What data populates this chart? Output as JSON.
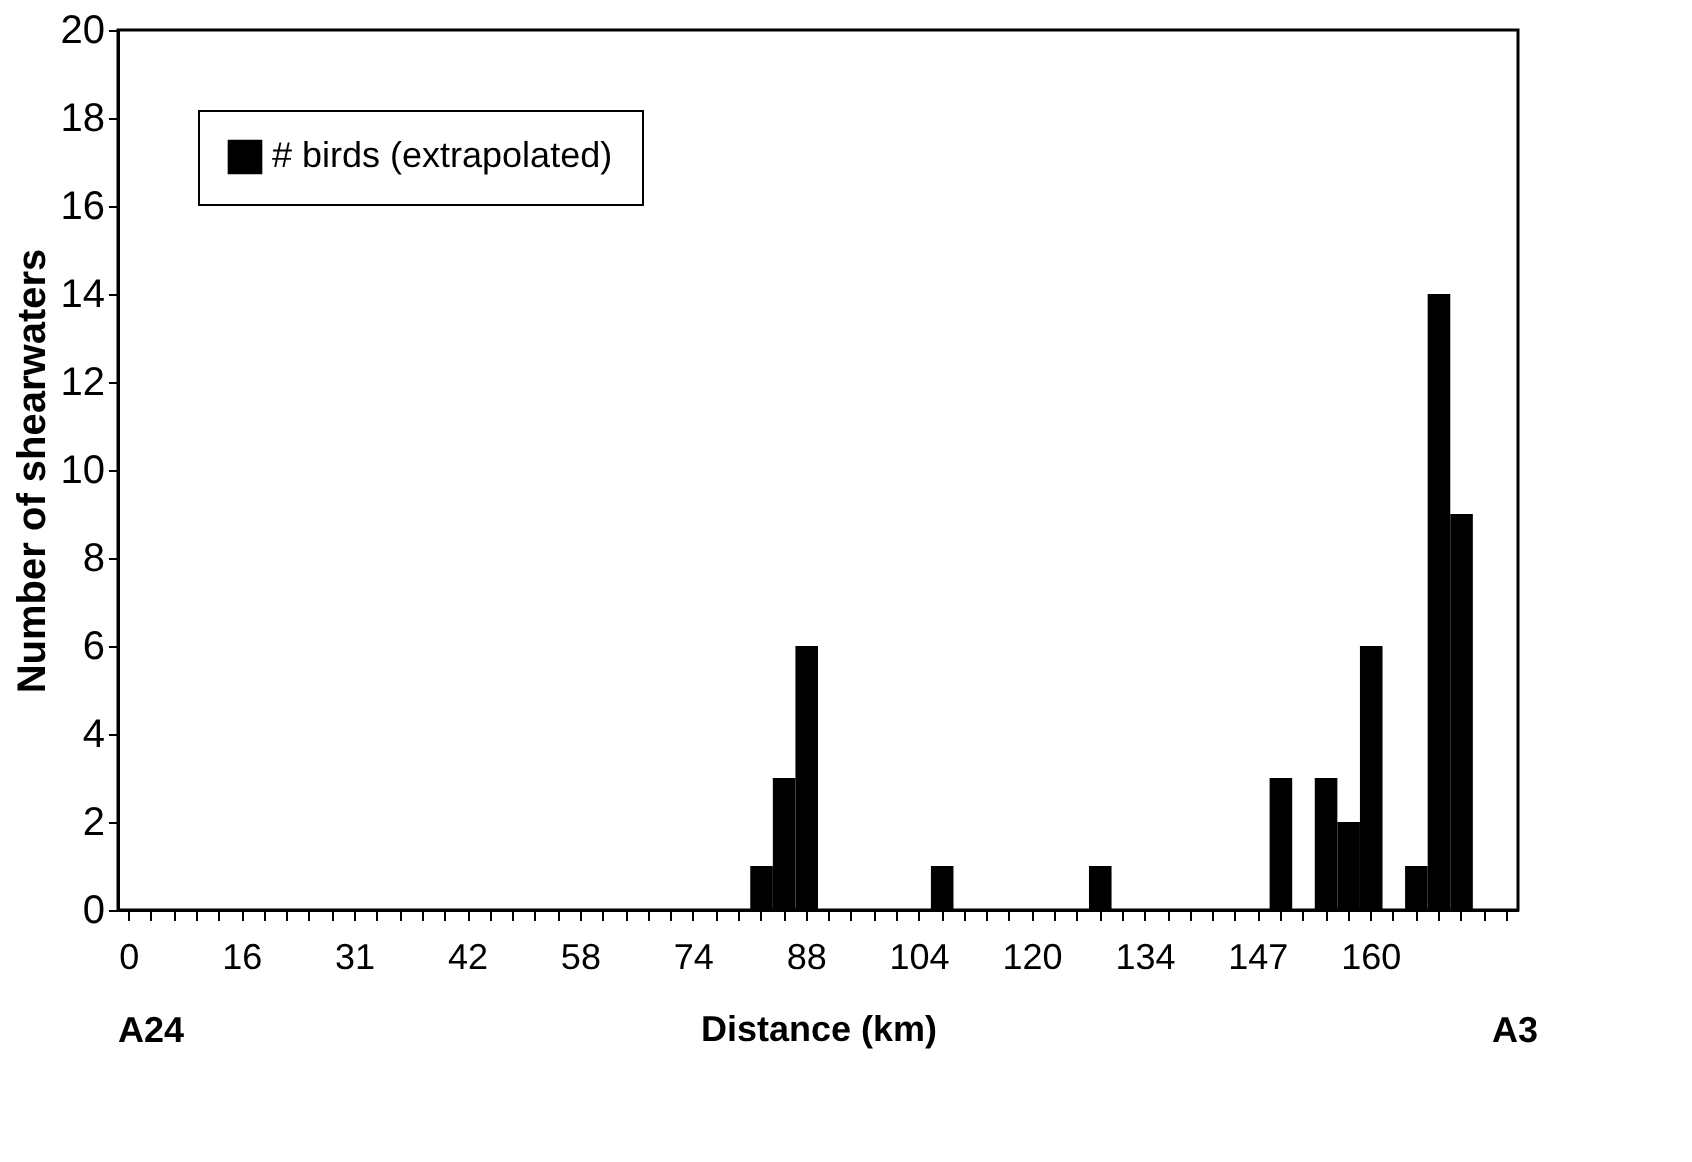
{
  "chart_data": {
    "type": "bar",
    "xlabel": "Distance (km)",
    "ylabel": "Number of shearwaters",
    "categories": [
      "0",
      null,
      null,
      null,
      null,
      "16",
      null,
      null,
      null,
      null,
      "31",
      null,
      null,
      null,
      null,
      "42",
      null,
      null,
      null,
      null,
      "58",
      null,
      null,
      null,
      null,
      "74",
      null,
      null,
      null,
      null,
      "88",
      null,
      null,
      null,
      null,
      "104",
      null,
      null,
      null,
      null,
      "120",
      null,
      null,
      null,
      null,
      "134",
      null,
      null,
      null,
      null,
      "147",
      null,
      null,
      null,
      null,
      "160",
      null,
      null,
      null,
      null,
      null,
      null
    ],
    "series": [
      {
        "name": "# birds (extrapolated)",
        "color": "#000000",
        "values": [
          0,
          0,
          0,
          0,
          0,
          0,
          0,
          0,
          0,
          0,
          0,
          0,
          0,
          0,
          0,
          0,
          0,
          0,
          0,
          0,
          0,
          0,
          0,
          0,
          0,
          0,
          0,
          0,
          1,
          3,
          6,
          0,
          0,
          0,
          0,
          0,
          1,
          0,
          0,
          0,
          0,
          0,
          0,
          1,
          0,
          0,
          0,
          0,
          0,
          0,
          0,
          3,
          0,
          3,
          2,
          6,
          0,
          1,
          14,
          9,
          0,
          0
        ]
      }
    ],
    "ylim": [
      0,
      20
    ],
    "yticks": [
      0,
      2,
      4,
      6,
      8,
      10,
      12,
      14,
      16,
      18,
      20
    ],
    "grid": false,
    "legend": "top left",
    "annotations": [
      "A24",
      "A3"
    ]
  }
}
